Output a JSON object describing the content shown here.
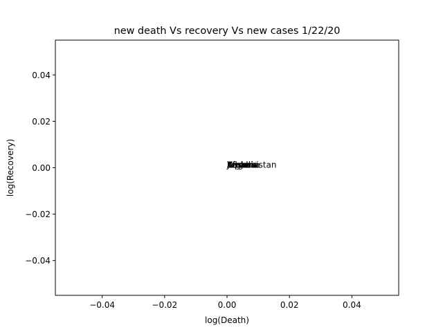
{
  "chart_data": {
    "type": "scatter",
    "title": "new death Vs recovery Vs new cases 1/22/20",
    "xlabel": "log(Death)",
    "ylabel": "log(Recovery)",
    "xlim": [
      -0.055,
      0.055
    ],
    "ylim": [
      -0.055,
      0.055
    ],
    "x_ticks": [
      -0.04,
      -0.02,
      0.0,
      0.02,
      0.04
    ],
    "x_tick_labels": [
      "−0.04",
      "−0.02",
      "0.00",
      "0.02",
      "0.04"
    ],
    "y_ticks": [
      -0.04,
      -0.02,
      0.0,
      0.02,
      0.04
    ],
    "y_tick_labels": [
      "−0.04",
      "−0.02",
      "0.00",
      "0.02",
      "0.04"
    ],
    "grid": false,
    "legend": "none",
    "points": [
      {
        "x": 0,
        "y": 0
      }
    ],
    "annotations": [
      {
        "text": "Kosovo",
        "x": 0,
        "y": 0
      },
      {
        "text": "Afghanistan",
        "x": 0,
        "y": 0
      },
      {
        "text": "Albania",
        "x": 0,
        "y": 0
      },
      {
        "text": "Andorra",
        "x": 0,
        "y": 0
      },
      {
        "text": "Angola",
        "x": 0,
        "y": 0
      },
      {
        "text": "Japan",
        "x": 0,
        "y": 0
      },
      {
        "text": "Yemen",
        "x": 0,
        "y": 0
      },
      {
        "text": "Zambia",
        "x": 0,
        "y": 0
      }
    ],
    "colors": {
      "text": "#000000",
      "frame": "#000000",
      "background": "#ffffff"
    }
  }
}
